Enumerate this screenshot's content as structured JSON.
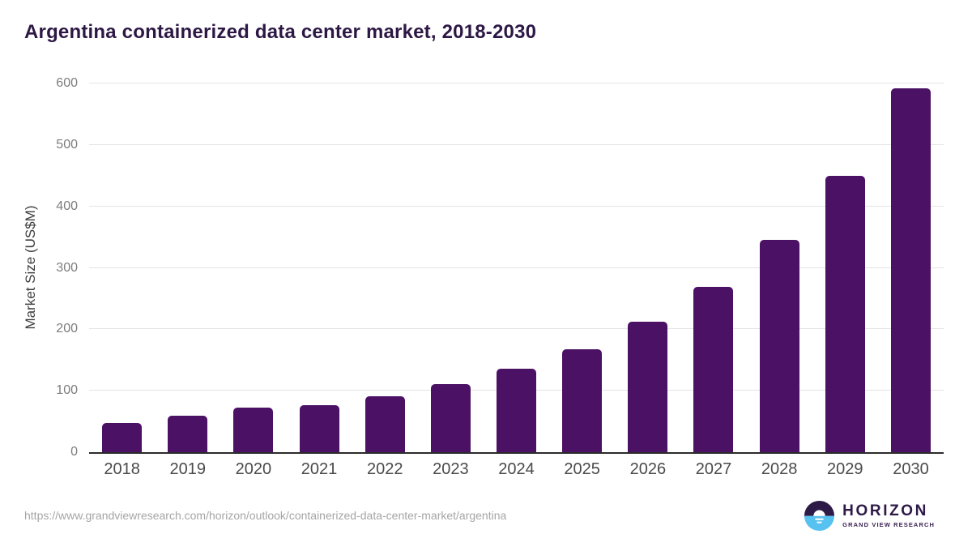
{
  "page": {
    "title": "Argentina containerized data center market, 2018-2030",
    "source_url": "https://www.grandviewresearch.com/horizon/outlook/containerized-data-center-market/argentina"
  },
  "logo": {
    "name": "HORIZON",
    "subtitle": "GRAND VIEW RESEARCH",
    "icon_top_color": "#2e1a47",
    "icon_bottom_color": "#57c1f0"
  },
  "chart_data": {
    "type": "bar",
    "title": "Argentina containerized data center market, 2018-2030",
    "categories": [
      "2018",
      "2019",
      "2020",
      "2021",
      "2022",
      "2023",
      "2024",
      "2025",
      "2026",
      "2027",
      "2028",
      "2029",
      "2030"
    ],
    "values": [
      48,
      60,
      72,
      77,
      91,
      111,
      136,
      168,
      212,
      269,
      345,
      450,
      592
    ],
    "xlabel": "",
    "ylabel": "Market Size (US$M)",
    "ylim": [
      0,
      600
    ],
    "yticks": [
      0,
      100,
      200,
      300,
      400,
      500,
      600
    ],
    "grid": true,
    "legend": false,
    "bar_color": "#4a1164",
    "gridline_color": "#e4e4e4",
    "axis_line_color": "#2b2b2b",
    "title_color": "#2d1845"
  }
}
